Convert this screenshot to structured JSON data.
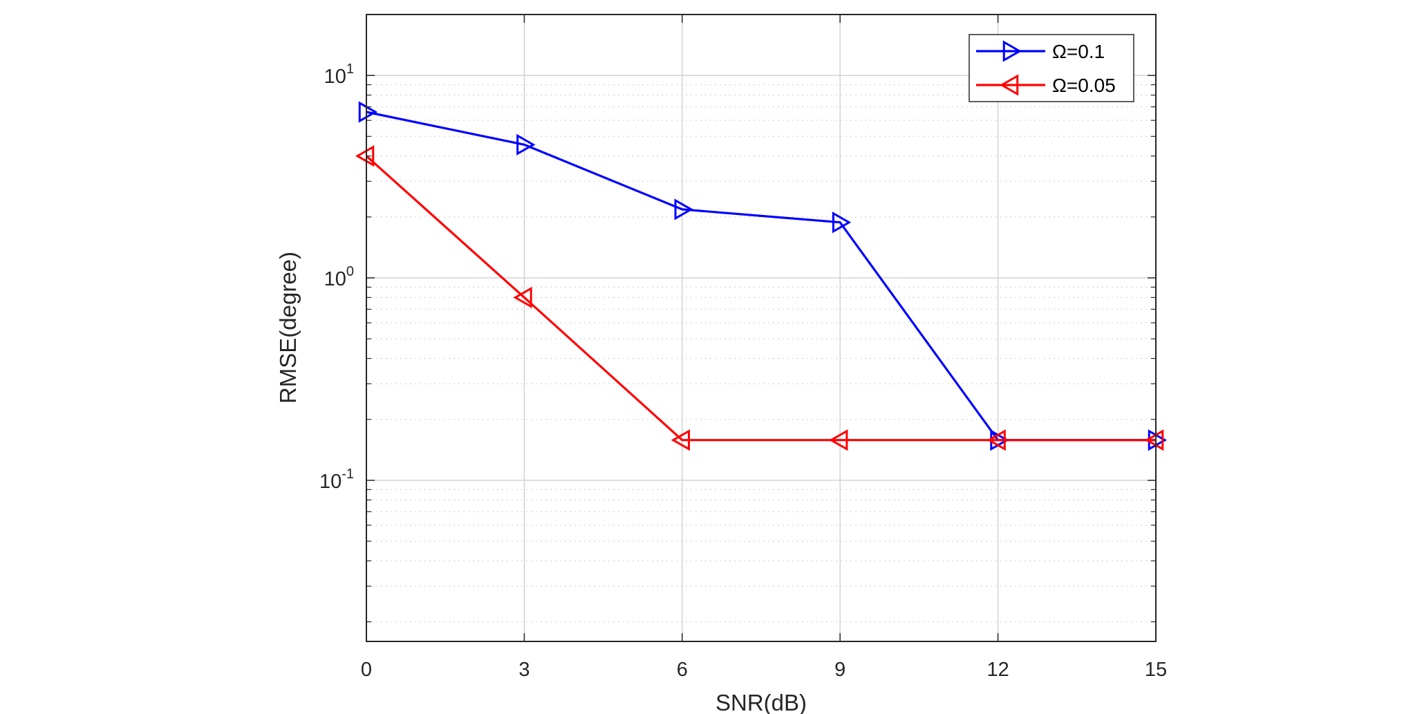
{
  "chart_data": {
    "type": "line",
    "title": "",
    "xlabel": "SNR(dB)",
    "ylabel": "RMSE(degree)",
    "xscale": "linear",
    "yscale": "log",
    "xlim": [
      0,
      15
    ],
    "ylim": [
      0.016,
      20
    ],
    "grid": true,
    "minor_grid": true,
    "x": [
      0,
      3,
      6,
      9,
      12,
      15
    ],
    "xticks": [
      0,
      3,
      6,
      9,
      12,
      15
    ],
    "xtick_labels": [
      "0",
      "3",
      "6",
      "9",
      "12",
      "15"
    ],
    "yticks": [
      0.1,
      1,
      10
    ],
    "ytick_labels": [
      {
        "base": "10",
        "exp": "-1"
      },
      {
        "base": "10",
        "exp": "0"
      },
      {
        "base": "10",
        "exp": "1"
      }
    ],
    "legend_position": "top-right",
    "series": [
      {
        "name": "Ω=0.1",
        "color": "#0000ff",
        "marker": "triangle-right",
        "values": [
          6.6,
          4.55,
          2.18,
          1.88,
          0.158,
          0.158
        ]
      },
      {
        "name": "Ω=0.05",
        "color": "#ff0000",
        "marker": "triangle-left",
        "values": [
          4.0,
          0.8,
          0.158,
          0.158,
          0.158,
          0.158
        ]
      }
    ]
  }
}
